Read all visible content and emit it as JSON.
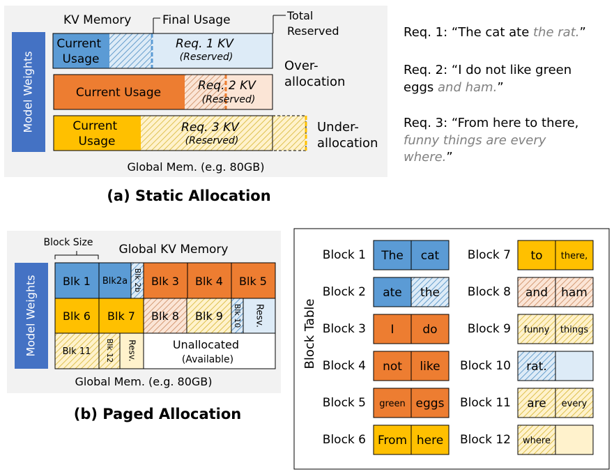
{
  "static": {
    "caption": "(a) Static Allocation",
    "kv_memory_label": "KV Memory",
    "final_usage_label": "Final Usage",
    "total_reserved_label": [
      "Total",
      "Reserved"
    ],
    "model_weights_label": "Model Weights",
    "global_mem_label": "Global Mem. (e.g. 80GB)",
    "req1": {
      "current": [
        "Current",
        "Usage"
      ],
      "reserved": [
        "Req. 1 KV",
        "(Reserved)"
      ]
    },
    "req2": {
      "current": [
        "Current Usage"
      ],
      "reserved": [
        "Req. 2 KV",
        "(Reserved)"
      ]
    },
    "req3": {
      "current": [
        "Current",
        "Usage"
      ],
      "reserved": [
        "Req. 3 KV",
        "(Reserved)"
      ]
    },
    "over_allocation": [
      "Over-",
      "allocation"
    ],
    "under_allocation": [
      "Under-",
      "allocation"
    ]
  },
  "requests": [
    {
      "lines": [
        [
          [
            "Req. 1: “The cat ate ",
            false
          ],
          [
            "the rat.",
            true
          ],
          [
            "”",
            false
          ]
        ]
      ]
    },
    {
      "lines": [
        [
          [
            "Req. 2: “I do not like green",
            false
          ]
        ],
        [
          [
            "eggs ",
            false
          ],
          [
            "and ham.",
            true
          ],
          [
            "”",
            false
          ]
        ]
      ]
    },
    {
      "lines": [
        [
          [
            "Req. 3: “From here to there,",
            false
          ]
        ],
        [
          [
            "funny things are every",
            true
          ]
        ],
        [
          [
            "where.",
            true
          ],
          [
            "”",
            false
          ]
        ]
      ]
    }
  ],
  "paged": {
    "caption": "(b) Paged Allocation",
    "block_size_label": "Block Size",
    "global_kv_label": "Global KV Memory",
    "model_weights_label": "Model Weights",
    "global_mem_label": "Global Mem. (e.g. 80GB)",
    "blocks": {
      "blk1": "Blk 1",
      "blk2a": "Blk2a",
      "blk2b": "Blk 2b",
      "blk3": "Blk 3",
      "blk4": "Blk 4",
      "blk5": "Blk 5",
      "blk6": "Blk 6",
      "blk7": "Blk 7",
      "blk8": "Blk 8",
      "blk9": "Blk 9",
      "blk10": "Blk 10",
      "resv": "Resv.",
      "blk11": "Blk 11",
      "blk12": "Blk 12",
      "resv2": "Resv."
    },
    "unallocated": [
      "Unallocated",
      "(Available)"
    ]
  },
  "block_table": {
    "title": "Block Table",
    "left": [
      {
        "label": "Block 1",
        "cells": [
          [
            "The",
            "blue"
          ],
          [
            "cat",
            "blue"
          ]
        ]
      },
      {
        "label": "Block 2",
        "cells": [
          [
            "ate",
            "blue"
          ],
          [
            "the",
            "blue-hatch"
          ]
        ]
      },
      {
        "label": "Block 3",
        "cells": [
          [
            "I",
            "orange"
          ],
          [
            "do",
            "orange"
          ]
        ]
      },
      {
        "label": "Block 4",
        "cells": [
          [
            "not",
            "orange"
          ],
          [
            "like",
            "orange"
          ]
        ]
      },
      {
        "label": "Block 5",
        "cells": [
          [
            "green",
            "orange"
          ],
          [
            "eggs",
            "orange"
          ]
        ]
      },
      {
        "label": "Block 6",
        "cells": [
          [
            "From",
            "yellow"
          ],
          [
            "here",
            "yellow"
          ]
        ]
      }
    ],
    "right": [
      {
        "label": "Block 7",
        "cells": [
          [
            "to",
            "yellow"
          ],
          [
            "there,",
            "yellow"
          ]
        ]
      },
      {
        "label": "Block 8",
        "cells": [
          [
            "and",
            "orange-hatch"
          ],
          [
            "ham",
            "orange-hatch"
          ]
        ]
      },
      {
        "label": "Block 9",
        "cells": [
          [
            "funny",
            "yellow-hatch"
          ],
          [
            "things",
            "yellow-hatch"
          ]
        ]
      },
      {
        "label": "Block 10",
        "cells": [
          [
            "rat.",
            "blue-hatch"
          ],
          [
            "",
            "blue-light"
          ]
        ]
      },
      {
        "label": "Block 11",
        "cells": [
          [
            "are",
            "yellow-hatch"
          ],
          [
            "every",
            "yellow-hatch"
          ]
        ]
      },
      {
        "label": "Block 12",
        "cells": [
          [
            "where",
            "yellow-hatch"
          ],
          [
            "",
            "yellow-light"
          ]
        ]
      }
    ]
  },
  "colors": {
    "blue": "#5b9bd5",
    "blue_light": "#ddebf7",
    "orange": "#ed7d31",
    "orange_light": "#fbe5d6",
    "yellow": "#ffc000",
    "yellow_light": "#fff2cc",
    "model_weights": "#4472c4",
    "panel_gray": "#f2f2f2",
    "gray_text": "#808080"
  }
}
